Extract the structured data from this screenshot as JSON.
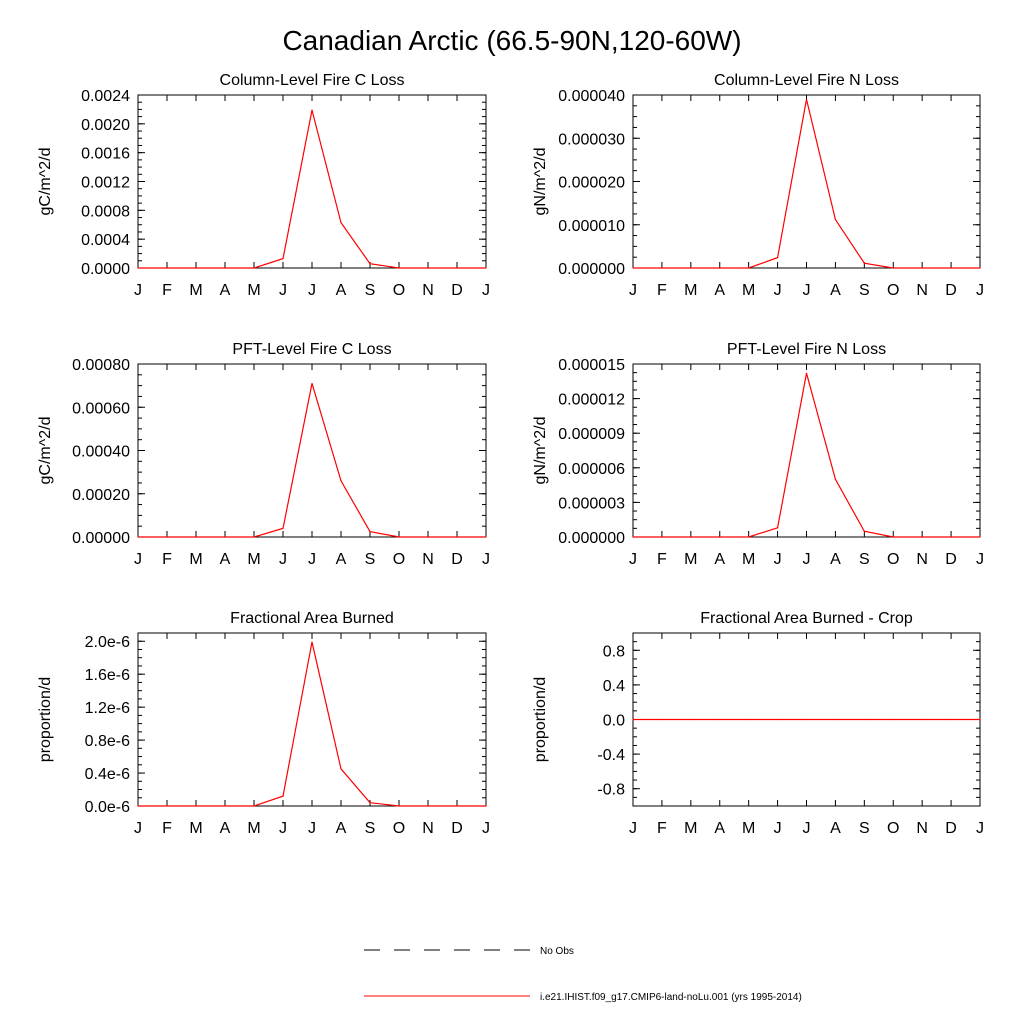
{
  "title": "Canadian Arctic (66.5-90N,120-60W)",
  "months": [
    "J",
    "F",
    "M",
    "A",
    "M",
    "J",
    "J",
    "A",
    "S",
    "O",
    "N",
    "D",
    "J"
  ],
  "colors": {
    "model_line": "#ff0000",
    "obs_line": "#000000",
    "axis": "#000000"
  },
  "legend": [
    {
      "label": "No Obs",
      "style": "dashed",
      "color": "#000000"
    },
    {
      "label": "i.e21.IHIST.f09_g17.CMIP6-land-noLu.001 (yrs 1995-2014)",
      "style": "solid",
      "color": "#ff0000"
    }
  ],
  "chart_data": [
    {
      "type": "line",
      "title": "Column-Level Fire C Loss",
      "ylabel": "gC/m^2/d",
      "ylim": [
        0,
        0.0024
      ],
      "yticks": [
        "0.0000",
        "0.0004",
        "0.0008",
        "0.0012",
        "0.0016",
        "0.0020",
        "0.0024"
      ],
      "x": [
        "J",
        "F",
        "M",
        "A",
        "M",
        "J",
        "J",
        "A",
        "S",
        "O",
        "N",
        "D",
        "J"
      ],
      "series": [
        {
          "values": [
            0,
            0,
            0,
            0,
            0,
            0.00013,
            0.00219,
            0.00063,
            6e-05,
            0,
            0,
            0,
            0
          ]
        }
      ]
    },
    {
      "type": "line",
      "title": "Column-Level Fire N Loss",
      "ylabel": "gN/m^2/d",
      "ylim": [
        0,
        4e-05
      ],
      "yticks": [
        "0.000000",
        "0.000010",
        "0.000020",
        "0.000030",
        "0.000040"
      ],
      "x": [
        "J",
        "F",
        "M",
        "A",
        "M",
        "J",
        "J",
        "A",
        "S",
        "O",
        "N",
        "D",
        "J"
      ],
      "series": [
        {
          "values": [
            0,
            0,
            0,
            0,
            0,
            2.4e-06,
            3.9e-05,
            1.12e-05,
            1.1e-06,
            0,
            0,
            0,
            0
          ]
        }
      ]
    },
    {
      "type": "line",
      "title": "PFT-Level Fire C Loss",
      "ylabel": "gC/m^2/d",
      "ylim": [
        0,
        0.0008
      ],
      "yticks": [
        "0.00000",
        "0.00020",
        "0.00040",
        "0.00060",
        "0.00080"
      ],
      "x": [
        "J",
        "F",
        "M",
        "A",
        "M",
        "J",
        "J",
        "A",
        "S",
        "O",
        "N",
        "D",
        "J"
      ],
      "series": [
        {
          "values": [
            0,
            0,
            0,
            0,
            0,
            4e-05,
            0.00071,
            0.00026,
            2.5e-05,
            0,
            0,
            0,
            0
          ]
        }
      ]
    },
    {
      "type": "line",
      "title": "PFT-Level Fire N Loss",
      "ylabel": "gN/m^2/d",
      "ylim": [
        0,
        1.5e-05
      ],
      "yticks": [
        "0.000000",
        "0.000003",
        "0.000006",
        "0.000009",
        "0.000012",
        "0.000015"
      ],
      "x": [
        "J",
        "F",
        "M",
        "A",
        "M",
        "J",
        "J",
        "A",
        "S",
        "O",
        "N",
        "D",
        "J"
      ],
      "series": [
        {
          "values": [
            0,
            0,
            0,
            0,
            0,
            8e-07,
            1.42e-05,
            5e-06,
            5e-07,
            0,
            0,
            0,
            0
          ]
        }
      ]
    },
    {
      "type": "line",
      "title": "Fractional Area Burned",
      "ylabel": "proportion/d",
      "ylim": [
        0,
        2.1e-06
      ],
      "yticks": [
        "0.0e-6",
        "0.4e-6",
        "0.8e-6",
        "1.2e-6",
        "1.6e-6",
        "2.0e-6"
      ],
      "x": [
        "J",
        "F",
        "M",
        "A",
        "M",
        "J",
        "J",
        "A",
        "S",
        "O",
        "N",
        "D",
        "J"
      ],
      "series": [
        {
          "values": [
            0,
            0,
            0,
            0,
            0,
            1.2e-07,
            1.99e-06,
            4.5e-07,
            4e-08,
            0,
            0,
            0,
            0
          ]
        }
      ]
    },
    {
      "type": "line",
      "title": "Fractional Area Burned - Crop",
      "ylabel": "proportion/d",
      "ylim": [
        -1,
        1
      ],
      "yticks": [
        "-0.8",
        "-0.4",
        "0.0",
        "0.4",
        "0.8"
      ],
      "x": [
        "J",
        "F",
        "M",
        "A",
        "M",
        "J",
        "J",
        "A",
        "S",
        "O",
        "N",
        "D",
        "J"
      ],
      "series": [
        {
          "values": [
            0,
            0,
            0,
            0,
            0,
            0,
            0,
            0,
            0,
            0,
            0,
            0,
            0
          ]
        }
      ]
    }
  ]
}
